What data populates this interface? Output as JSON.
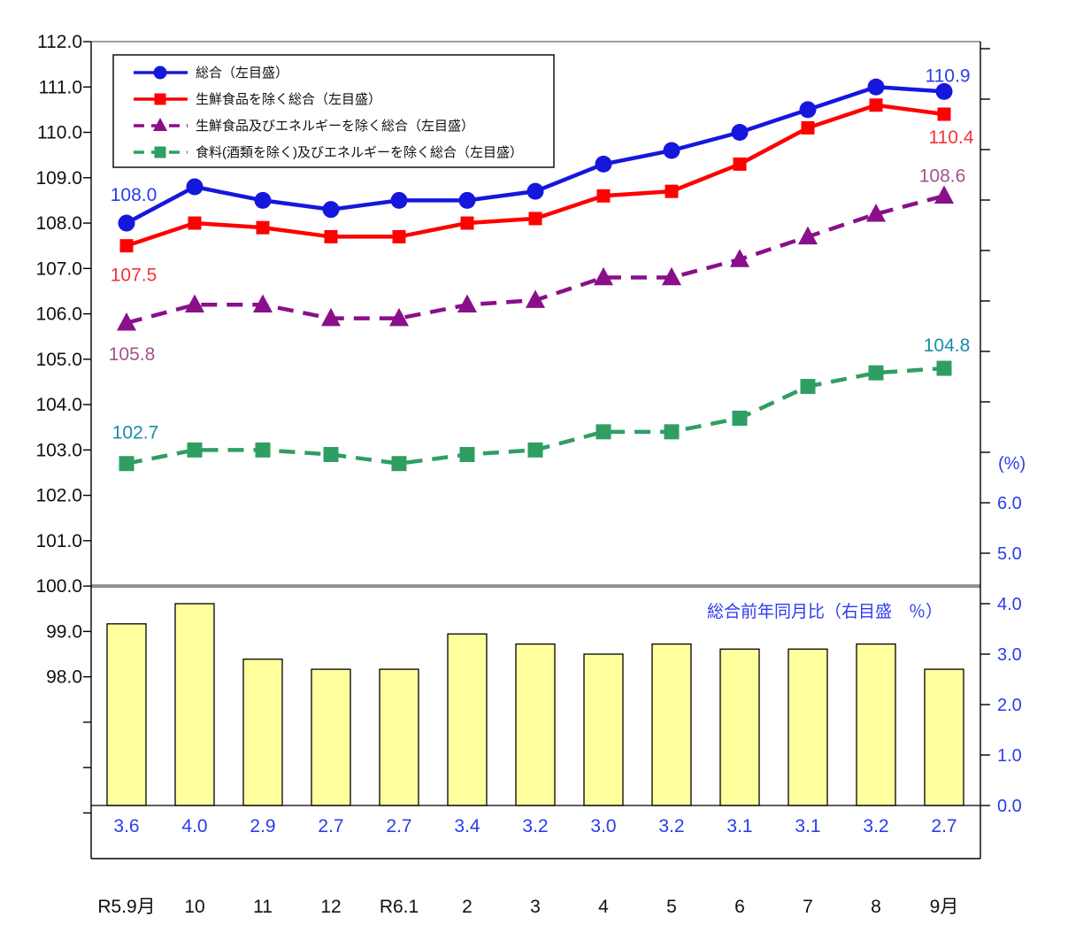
{
  "chart_data": {
    "type": "combo-line-bar",
    "title": "",
    "categories": [
      "R5.9月",
      "10",
      "11",
      "12",
      "R6.1",
      "2",
      "3",
      "4",
      "5",
      "6",
      "7",
      "8",
      "9月"
    ],
    "line_series": [
      {
        "name": "総合（左目盛）",
        "marker": "circle",
        "dash": "solid",
        "color": "#1517dd",
        "label_color": "#2b3cee",
        "values": [
          108.0,
          108.8,
          108.5,
          108.3,
          108.5,
          108.5,
          108.7,
          109.3,
          109.6,
          110.0,
          110.5,
          111.0,
          110.9
        ],
        "first_label": "108.0",
        "last_label": "110.9"
      },
      {
        "name": "生鮮食品を除く総合（左目盛）",
        "marker": "square",
        "dash": "solid",
        "color": "#fe0000",
        "label_color": "#f2333b",
        "values": [
          107.5,
          108.0,
          107.9,
          107.7,
          107.7,
          108.0,
          108.1,
          108.6,
          108.7,
          109.3,
          110.1,
          110.6,
          110.4
        ],
        "first_label": "107.5",
        "last_label": "110.4"
      },
      {
        "name": "生鮮食品及びエネルギーを除く総合（左目盛）",
        "marker": "triangle",
        "dash": "dashed",
        "color": "#8a0f8a",
        "label_color": "#a3538e",
        "values": [
          105.8,
          106.2,
          106.2,
          105.9,
          105.9,
          106.2,
          106.3,
          106.8,
          106.8,
          107.2,
          107.7,
          108.2,
          108.6
        ],
        "first_label": "105.8",
        "last_label": "108.6"
      },
      {
        "name": "食料(酒類を除く)及びエネルギーを除く総合（左目盛）",
        "marker": "square",
        "dash": "dashed",
        "color": "#2f9e63",
        "label_color": "#1b8ca6",
        "values": [
          102.7,
          103.0,
          103.0,
          102.9,
          102.7,
          102.9,
          103.0,
          103.4,
          103.4,
          103.7,
          104.4,
          104.7,
          104.8
        ],
        "first_label": "102.7",
        "last_label": "104.8"
      }
    ],
    "bar_series": {
      "name": "総合前年同月比（右目盛　％）",
      "values": [
        3.6,
        4.0,
        2.9,
        2.7,
        2.7,
        3.4,
        3.2,
        3.0,
        3.2,
        3.1,
        3.1,
        3.2,
        2.7
      ],
      "fill": "#ffff9e",
      "stroke": "#000000",
      "label_color": "#2b3cee"
    },
    "left_axis": {
      "labels": [
        "112.0",
        "111.0",
        "110.0",
        "109.0",
        "108.0",
        "107.0",
        "106.0",
        "105.0",
        "104.0",
        "103.0",
        "102.0",
        "101.0",
        "100.0",
        "99.0",
        "98.0"
      ],
      "max": 112.0,
      "min_labeled": 98.0,
      "tick_step": 1.0,
      "text_color": "#111111"
    },
    "right_axis": {
      "unit_label": "(%)",
      "labels": [
        "6.0",
        "5.0",
        "4.0",
        "3.0",
        "2.0",
        "1.0",
        "0.0"
      ],
      "max_labeled": 6.0,
      "min": 0.0,
      "tick_step": 1.0,
      "text_color": "#2b3cee"
    },
    "annotation": "総合前年同月比（右目盛　％）",
    "annotation_color": "#2b3cee",
    "reference_line": {
      "value": 100.0,
      "color": "#909090"
    },
    "legend_position": "top-left",
    "grid": false,
    "frame_top_color": "#a0a0a0",
    "frame_color": "#000000"
  }
}
